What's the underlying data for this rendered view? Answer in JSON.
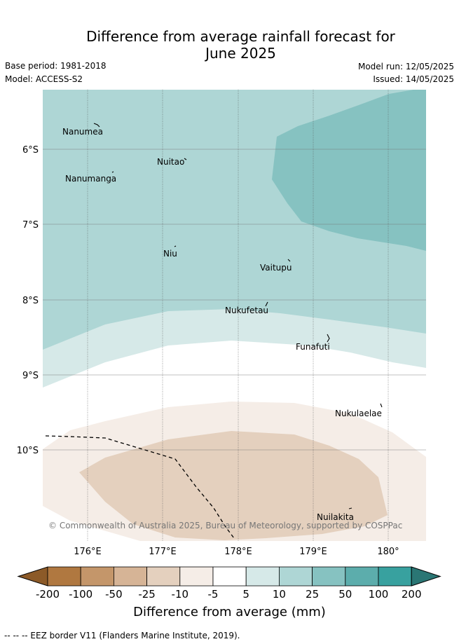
{
  "header": {
    "title_line1": "Difference from average rainfall forecast for",
    "title_line2": "June 2025",
    "base_period": "Base period: 1981-2018",
    "model": "Model: ACCESS-S2",
    "model_run": "Model run: 12/05/2025",
    "issued": "Issued: 14/05/2025"
  },
  "map": {
    "lon_labels": [
      "176°E",
      "177°E",
      "178°E",
      "179°E",
      "180°"
    ],
    "lat_labels": [
      "6°S",
      "7°S",
      "8°S",
      "9°S",
      "10°S"
    ],
    "places": [
      "Nanumea",
      "Nuitao",
      "Nanumanga",
      "Niu",
      "Vaitupu",
      "Nukufetau",
      "Funafuti",
      "Nukulaelae",
      "Nuilakita"
    ],
    "copyright": "© Commonwealth of Australia 2025, Bureau of Meteorology, supported by COSPPac"
  },
  "colorbar": {
    "title": "Difference from average (mm)",
    "ticks": [
      "-200",
      "-100",
      "-50",
      "-25",
      "-10",
      "-5",
      "5",
      "10",
      "25",
      "50",
      "100",
      "200"
    ],
    "colors": [
      "#8c5a28",
      "#b07840",
      "#c4966a",
      "#d6b496",
      "#e4d0be",
      "#f5ede7",
      "#ffffff",
      "#d6e9e8",
      "#aed6d5",
      "#86c2c1",
      "#5cadac",
      "#38a19f",
      "#2a7674"
    ]
  },
  "legend": {
    "eez_note": "-- -- -- EEZ border V11 (Flanders Marine Institute, 2019)."
  }
}
